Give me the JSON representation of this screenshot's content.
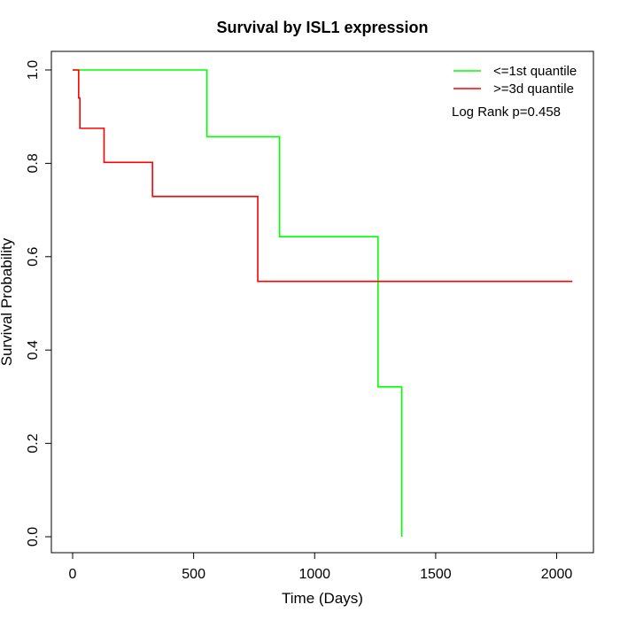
{
  "chart_data": {
    "type": "line",
    "subtype": "kaplan-meier step",
    "title": "Survival by ISL1 expression",
    "xlabel": "Time (Days)",
    "ylabel": "Survival Probability",
    "xlim": [
      0,
      2070
    ],
    "ylim": [
      0,
      1
    ],
    "xticks": [
      0,
      500,
      1000,
      1500,
      2000
    ],
    "yticks": [
      0.0,
      0.2,
      0.4,
      0.6,
      0.8,
      1.0
    ],
    "xtick_labels": [
      "0",
      "500",
      "1000",
      "1500",
      "2000"
    ],
    "ytick_labels": [
      "0.0",
      "0.2",
      "0.4",
      "0.6",
      "0.8",
      "1.0"
    ],
    "grid": false,
    "legend_position": "top-right",
    "annotation": "Log Rank p=0.458",
    "series": [
      {
        "name": "<=1st quantile",
        "color": "#00ff00",
        "x": [
          0,
          555,
          555,
          855,
          855,
          1262,
          1262,
          1360,
          1360
        ],
        "y": [
          1.0,
          1.0,
          0.857,
          0.857,
          0.643,
          0.643,
          0.321,
          0.321,
          0.0
        ]
      },
      {
        "name": ">=3d quantile",
        "color": "#ff0000",
        "x": [
          0,
          25,
          25,
          30,
          30,
          130,
          130,
          330,
          330,
          765,
          765,
          2065
        ],
        "y": [
          1.0,
          1.0,
          0.94,
          0.94,
          0.875,
          0.875,
          0.802,
          0.802,
          0.729,
          0.729,
          0.547,
          0.547
        ]
      }
    ]
  }
}
